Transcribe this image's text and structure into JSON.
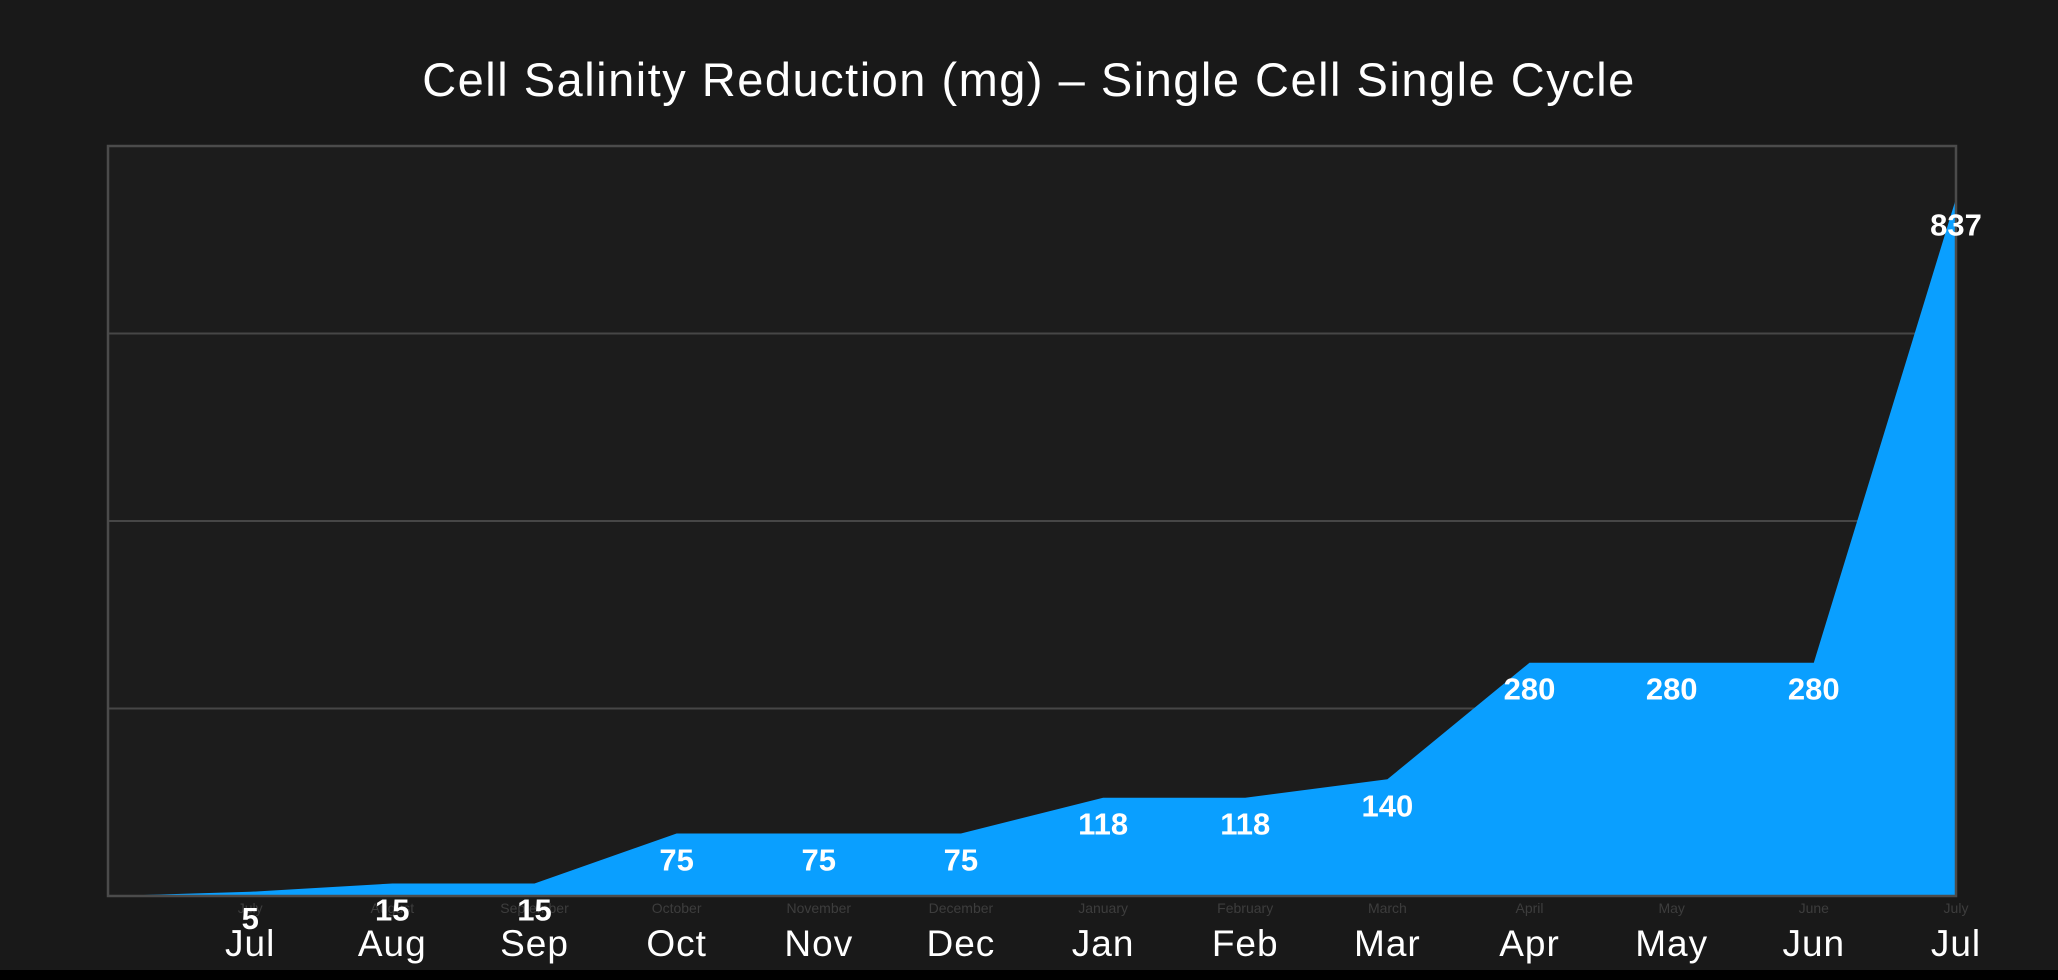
{
  "page": {
    "background_color": "#191919",
    "bottom_bar_color": "#000000"
  },
  "chart_data": {
    "type": "area",
    "title": "Cell Salinity Reduction (mg) – Single Cell Single Cycle",
    "categories": [
      "Jul",
      "Aug",
      "Sep",
      "Oct",
      "Nov",
      "Dec",
      "Jan",
      "Feb",
      "Mar",
      "Apr",
      "May",
      "Jun",
      "Jul"
    ],
    "categories_full": [
      "July",
      "August",
      "September",
      "October",
      "November",
      "December",
      "January",
      "February",
      "March",
      "April",
      "May",
      "June",
      "July"
    ],
    "values": [
      5,
      15,
      15,
      75,
      75,
      75,
      118,
      118,
      140,
      280,
      280,
      280,
      837
    ],
    "xlabel": "",
    "ylabel": "",
    "ylim": [
      0,
      900
    ],
    "gridline_values": [
      225,
      450,
      675
    ],
    "grid_on": true,
    "legend": "none",
    "data_labels_visible": true,
    "colors": {
      "area_fill": "#0a9fff",
      "value_label": "#ffffff",
      "month_label": "#ffffff",
      "tiny_month_label": "#3d3d3d",
      "gridline": "#464646",
      "plot_border": "#4b4b4b",
      "plot_background": "#1c1c1c",
      "title": "#ffffff"
    }
  }
}
